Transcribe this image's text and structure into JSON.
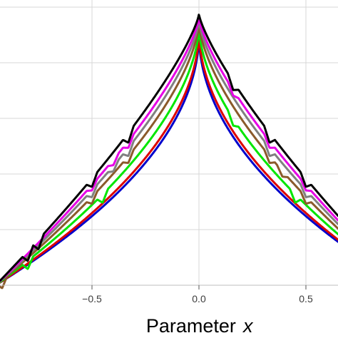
{
  "chart_data": {
    "type": "line",
    "xlabel": "Parameter",
    "xlabel_var": "x",
    "xlim": [
      -0.93,
      0.65
    ],
    "ylim": [
      0,
      1
    ],
    "x_ticks": [
      -0.5,
      0.0,
      0.5
    ],
    "x_tick_labels": [
      "−0.5",
      "0.0",
      "0.5"
    ],
    "y_gridlines": [
      0.2,
      0.4,
      0.6,
      0.8,
      1.0
    ],
    "grid": true,
    "legend": "none",
    "series": [
      {
        "color": "#0000cc",
        "level": 0.905,
        "exponent": 0.5,
        "cusps": []
      },
      {
        "color": "#dd0000",
        "level": 0.915,
        "exponent": 0.52,
        "cusps": []
      },
      {
        "color": "#00e600",
        "level": 0.93,
        "exponent": 0.58,
        "cusps": [
          {
            "x": -0.8,
            "d": 0.03
          },
          {
            "x": -0.45,
            "d": 0.03
          },
          {
            "x": 0.16,
            "d": 0.025
          },
          {
            "x": 0.45,
            "d": 0.03
          }
        ]
      },
      {
        "color": "#8b5a2b",
        "level": 0.945,
        "exponent": 0.64,
        "cusps": [
          {
            "x": -0.92,
            "d": 0.03
          },
          {
            "x": -0.5,
            "d": 0.025
          },
          {
            "x": -0.33,
            "d": 0.025
          },
          {
            "x": 0.33,
            "d": 0.025
          },
          {
            "x": 0.39,
            "d": 0.02
          },
          {
            "x": 0.5,
            "d": 0.025
          }
        ]
      },
      {
        "color": "#808080",
        "level": 0.955,
        "exponent": 0.69,
        "cusps": [
          {
            "x": -0.5,
            "d": 0.025
          },
          {
            "x": -0.4,
            "d": 0.02
          },
          {
            "x": -0.33,
            "d": 0.03
          },
          {
            "x": 0.33,
            "d": 0.03
          },
          {
            "x": 0.5,
            "d": 0.025
          }
        ]
      },
      {
        "color": "#e600e6",
        "level": 0.965,
        "exponent": 0.73,
        "cusps": [
          {
            "x": -0.5,
            "d": 0.02
          },
          {
            "x": -0.4,
            "d": 0.02
          },
          {
            "x": -0.33,
            "d": 0.025
          },
          {
            "x": 0.16,
            "d": 0.02
          },
          {
            "x": 0.33,
            "d": 0.025
          },
          {
            "x": 0.5,
            "d": 0.02
          }
        ]
      },
      {
        "color": "#000000",
        "level": 0.975,
        "exponent": 0.78,
        "cusps": [
          {
            "x": -0.8,
            "d": 0.035
          },
          {
            "x": -0.75,
            "d": 0.035
          },
          {
            "x": -0.5,
            "d": 0.03
          },
          {
            "x": -0.33,
            "d": 0.035
          },
          {
            "x": 0.16,
            "d": 0.03
          },
          {
            "x": 0.33,
            "d": 0.035
          },
          {
            "x": 0.5,
            "d": 0.03
          }
        ]
      }
    ]
  }
}
